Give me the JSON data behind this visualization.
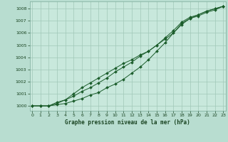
{
  "xlabel": "Graphe pression niveau de la mer (hPa)",
  "bg_color": "#b8ddd0",
  "plot_bg_color": "#c8e8dc",
  "grid_color": "#a0c8b8",
  "line_color": "#1a5c2a",
  "marker_color": "#1a5c2a",
  "xlim": [
    -0.3,
    23.3
  ],
  "ylim": [
    999.6,
    1008.6
  ],
  "xticks": [
    0,
    1,
    2,
    3,
    4,
    5,
    6,
    7,
    8,
    9,
    10,
    11,
    12,
    13,
    14,
    15,
    16,
    17,
    18,
    19,
    20,
    21,
    22,
    23
  ],
  "yticks": [
    1000,
    1001,
    1002,
    1003,
    1004,
    1005,
    1006,
    1007,
    1008
  ],
  "hours": [
    0,
    1,
    2,
    3,
    4,
    5,
    6,
    7,
    8,
    9,
    10,
    11,
    12,
    13,
    14,
    15,
    16,
    17,
    18,
    19,
    20,
    21,
    22,
    23
  ],
  "line1": [
    1000.0,
    1000.0,
    1000.0,
    1000.1,
    1000.2,
    1000.4,
    1000.6,
    1000.9,
    1001.1,
    1001.5,
    1001.8,
    1002.2,
    1002.7,
    1003.2,
    1003.8,
    1004.5,
    1005.2,
    1006.0,
    1006.7,
    1007.2,
    1007.5,
    1007.8,
    1008.0,
    1008.2
  ],
  "line2": [
    1000.0,
    1000.0,
    1000.0,
    1000.2,
    1000.5,
    1000.8,
    1001.2,
    1001.5,
    1001.9,
    1002.3,
    1002.8,
    1003.2,
    1003.6,
    1004.1,
    1004.5,
    1005.0,
    1005.6,
    1006.2,
    1006.9,
    1007.3,
    1007.5,
    1007.8,
    1008.0,
    1008.2
  ],
  "line3": [
    1000.0,
    1000.0,
    1000.0,
    1000.3,
    1000.5,
    1001.0,
    1001.5,
    1001.9,
    1002.3,
    1002.7,
    1003.1,
    1003.5,
    1003.8,
    1004.2,
    1004.5,
    1005.0,
    1005.5,
    1006.0,
    1006.8,
    1007.2,
    1007.4,
    1007.7,
    1007.9,
    1008.2
  ]
}
